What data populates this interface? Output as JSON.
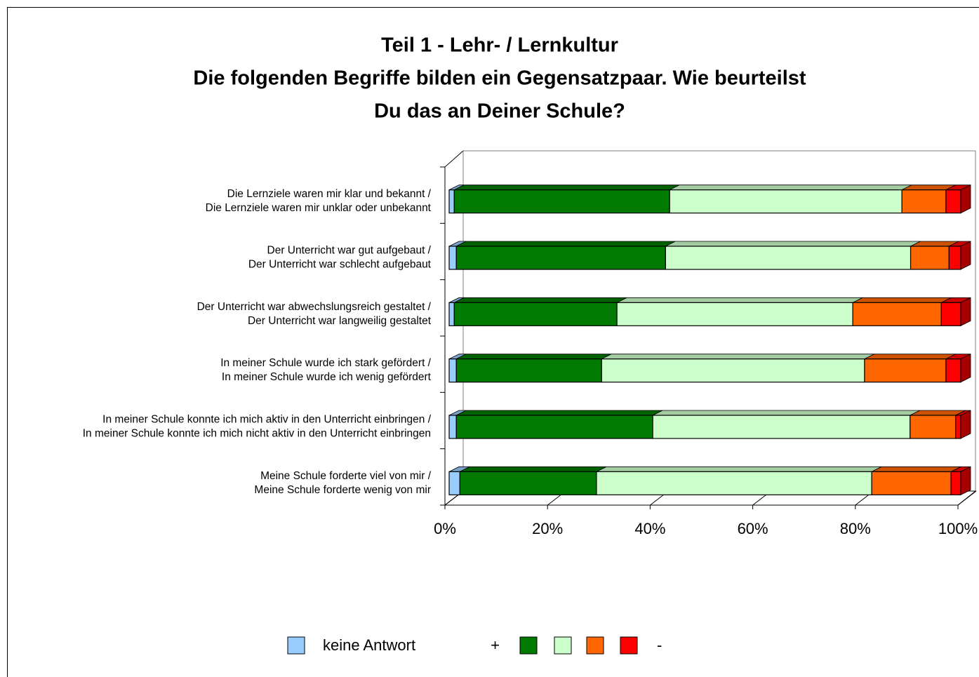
{
  "chart_data": {
    "type": "stacked_bar_3d",
    "title": [
      "Teil 1 - Lehr- / Lernkultur",
      "Die folgenden Begriffe bilden ein Gegensatzpaar. Wie beurteilst",
      "Du das an Deiner Schule?"
    ],
    "categories": [
      [
        "Die Lernziele waren mir klar und bekannt /",
        "Die Lernziele waren mir unklar oder unbekannt"
      ],
      [
        "Der Unterricht war gut aufgebaut /",
        "Der Unterricht war schlecht aufgebaut"
      ],
      [
        "Der Unterricht war abwechslungsreich gestaltet /",
        "Der Unterricht war langweilig gestaltet"
      ],
      [
        "In meiner Schule wurde ich stark gefördert /",
        "In meiner Schule wurde ich wenig gefördert"
      ],
      [
        "In meiner Schule konnte ich mich aktiv in den Unterricht einbringen /",
        "In meiner Schule konnte ich mich nicht aktiv in den Unterricht einbringen"
      ],
      [
        "Meine Schule forderte viel von mir /",
        "Meine Schule forderte wenig von mir"
      ]
    ],
    "series": [
      {
        "name": "keine Antwort",
        "color": "#99ccff",
        "values": [
          1.0,
          1.4,
          1.0,
          1.4,
          1.4,
          2.1
        ]
      },
      {
        "name": "+",
        "color": "#007a00",
        "values": [
          42.1,
          40.9,
          31.8,
          28.4,
          38.4,
          26.7
        ]
      },
      {
        "color": "#ccffcc",
        "values": [
          45.4,
          47.9,
          46.1,
          51.4,
          50.3,
          53.8
        ]
      },
      {
        "color": "#ff6600",
        "values": [
          8.6,
          7.5,
          17.3,
          15.9,
          8.9,
          15.5
        ]
      },
      {
        "name": "-",
        "color": "#ff0000",
        "values": [
          2.9,
          2.3,
          3.8,
          2.9,
          1.0,
          1.9
        ]
      }
    ],
    "xlim": [
      0,
      100
    ],
    "xticks": [
      {
        "value": 0,
        "label": "0%"
      },
      {
        "value": 20,
        "label": "20%"
      },
      {
        "value": 40,
        "label": "40%"
      },
      {
        "value": 60,
        "label": "60%"
      },
      {
        "value": 80,
        "label": "80%"
      },
      {
        "value": 100,
        "label": "100%"
      }
    ],
    "stacked": true
  }
}
